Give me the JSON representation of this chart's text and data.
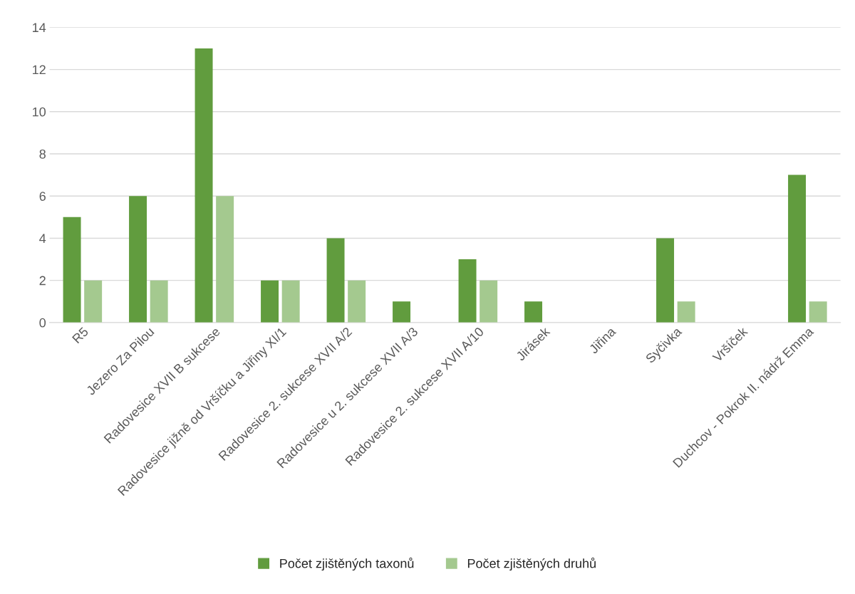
{
  "chart_data": {
    "type": "bar",
    "categories": [
      "R5",
      "Jezero Za Pilou",
      "Radovesice XVII B sukcese",
      "Radovesice jižně od Vršíčku a Jiřiny XI/1",
      "Radovesice 2. sukcese XVII A/2",
      "Radovesice u 2. sukcese XVII A/3",
      "Radovesice 2. sukcese XVII A/10",
      "Jirásek",
      "Jiřina",
      "Syčivka",
      "Vršíček",
      "Duchcov - Pokrok II. nádrž Emma"
    ],
    "series": [
      {
        "name": "Počet zjištěných taxonů",
        "color": "#619c3e",
        "values": [
          5,
          6,
          13,
          2,
          4,
          1,
          3,
          1,
          0,
          4,
          0,
          7
        ]
      },
      {
        "name": "Počet zjištěných druhů",
        "color": "#a4c98f",
        "values": [
          2,
          2,
          6,
          2,
          2,
          0,
          2,
          0,
          0,
          1,
          0,
          1
        ]
      }
    ],
    "ylim": [
      0,
      14
    ],
    "yticks": [
      0,
      2,
      4,
      6,
      8,
      10,
      12,
      14
    ],
    "grid": "y",
    "legend": "bottom"
  }
}
